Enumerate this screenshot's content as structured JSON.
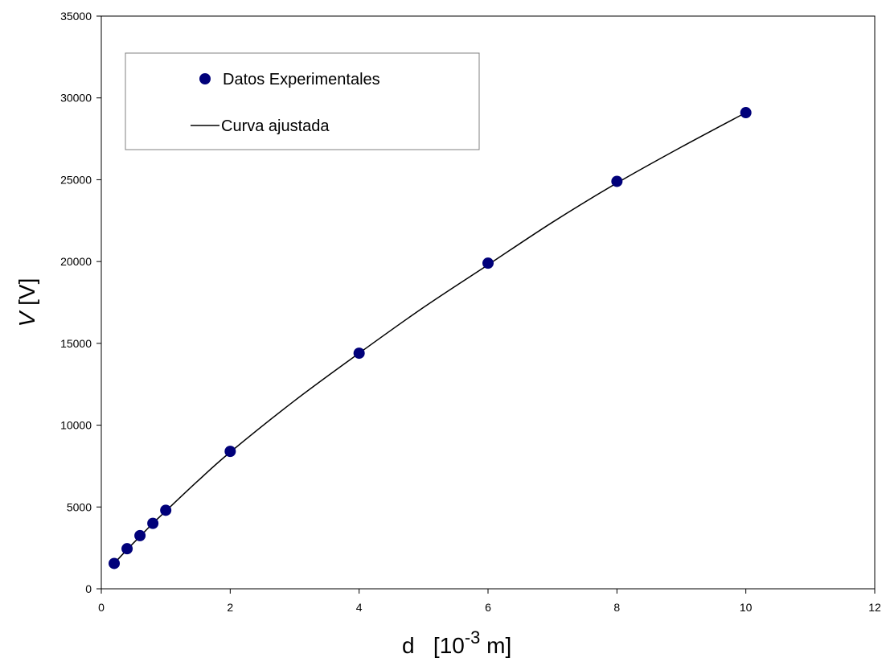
{
  "chart_data": {
    "type": "scatter",
    "xlabel": {
      "base": "d   [10",
      "exp": "-3",
      "unit": " m]"
    },
    "ylabel": {
      "var": "V",
      "unit": " [V]"
    },
    "xlim": [
      0,
      12
    ],
    "ylim": [
      0,
      35000
    ],
    "xticks": [
      "0",
      "2",
      "4",
      "6",
      "8",
      "10",
      "12"
    ],
    "yticks": [
      "0",
      "5000",
      "10000",
      "15000",
      "20000",
      "25000",
      "30000",
      "35000"
    ],
    "grid": false,
    "legend_placement": "top-left",
    "series": [
      {
        "name": "Datos Experimentales",
        "kind": "markers",
        "color": "#00007a",
        "x": [
          0.2,
          0.4,
          0.6,
          0.8,
          1.0,
          2.0,
          4.0,
          6.0,
          8.0,
          10.0
        ],
        "y": [
          1550,
          2450,
          3250,
          4000,
          4800,
          8400,
          14400,
          19900,
          24900,
          29100
        ]
      },
      {
        "name": "Curva ajustada",
        "kind": "line",
        "color": "#000000",
        "x": [
          0.2,
          0.4,
          0.6,
          0.8,
          1.0,
          1.5,
          2.0,
          3.0,
          4.0,
          5.0,
          6.0,
          7.0,
          8.0,
          9.0,
          10.0
        ],
        "y": [
          1550,
          2400,
          3200,
          4000,
          4750,
          6600,
          8350,
          11500,
          14400,
          17200,
          19800,
          22400,
          24800,
          27000,
          29100
        ]
      }
    ]
  }
}
